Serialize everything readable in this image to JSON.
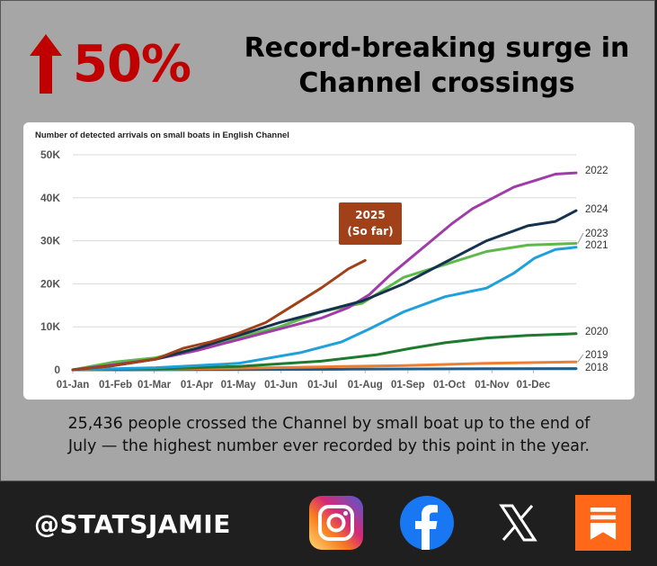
{
  "headline": {
    "percent": "50%",
    "title_line1": "Record-breaking surge in",
    "title_line2": "Channel crossings"
  },
  "colors": {
    "background": "#a6a6a6",
    "accent_red": "#c00000",
    "footer": "#1f1f1f",
    "annotation_box": "#a0411a"
  },
  "chart_data": {
    "type": "line",
    "title": "Number of detected arrivals on small boats in English Channel",
    "xlabel": "",
    "ylabel": "",
    "x_ticks": [
      "01-Jan",
      "01-Feb",
      "01-Mar",
      "01-Apr",
      "01-May",
      "01-Jun",
      "01-Jul",
      "01-Aug",
      "01-Sep",
      "01-Oct",
      "01-Nov",
      "01-Dec"
    ],
    "x_tick_days": [
      0,
      31,
      59,
      90,
      120,
      151,
      181,
      212,
      243,
      273,
      304,
      334
    ],
    "xlim": [
      0,
      365
    ],
    "y_ticks": [
      "0",
      "10K",
      "20K",
      "30K",
      "40K",
      "50K"
    ],
    "y_tick_values": [
      0,
      10000,
      20000,
      30000,
      40000,
      50000
    ],
    "ylim": [
      0,
      50000
    ],
    "grid": true,
    "annotation": {
      "line1": "2025",
      "line2": "(So far)"
    },
    "series": [
      {
        "name": "2018",
        "color": "#1f5c8a",
        "x": [
          0,
          100,
          200,
          300,
          365
        ],
        "y": [
          0,
          50,
          150,
          250,
          300
        ]
      },
      {
        "name": "2019",
        "color": "#ed7d31",
        "x": [
          0,
          60,
          120,
          180,
          240,
          300,
          365
        ],
        "y": [
          0,
          150,
          350,
          700,
          1000,
          1500,
          1850
        ]
      },
      {
        "name": "2020",
        "color": "#1e7a2e",
        "x": [
          0,
          60,
          120,
          180,
          220,
          245,
          270,
          300,
          330,
          365
        ],
        "y": [
          0,
          200,
          800,
          2000,
          3500,
          5000,
          6300,
          7400,
          8000,
          8400
        ]
      },
      {
        "name": "2021",
        "color": "#1fa0db",
        "x": [
          0,
          60,
          120,
          165,
          195,
          215,
          240,
          270,
          300,
          320,
          335,
          350,
          365
        ],
        "y": [
          0,
          500,
          1500,
          4000,
          6500,
          9500,
          13500,
          17000,
          19000,
          22500,
          26000,
          28000,
          28500
        ]
      },
      {
        "name": "2022",
        "color": "#a03ca8",
        "x": [
          0,
          30,
          60,
          90,
          120,
          150,
          180,
          200,
          215,
          230,
          245,
          260,
          275,
          290,
          305,
          320,
          335,
          350,
          365
        ],
        "y": [
          0,
          1200,
          2500,
          4500,
          7000,
          9500,
          12000,
          14500,
          17500,
          22000,
          26000,
          30000,
          34000,
          37500,
          40000,
          42500,
          44000,
          45500,
          45800
        ]
      },
      {
        "name": "2023",
        "color": "#5fb84a",
        "x": [
          0,
          30,
          60,
          90,
          120,
          150,
          180,
          210,
          240,
          270,
          300,
          330,
          365
        ],
        "y": [
          0,
          1800,
          2800,
          5000,
          7500,
          10000,
          13500,
          15500,
          21500,
          24500,
          27500,
          29000,
          29400
        ]
      },
      {
        "name": "2024",
        "color": "#14324f",
        "x": [
          0,
          30,
          60,
          90,
          120,
          150,
          180,
          210,
          240,
          270,
          300,
          330,
          350,
          365
        ],
        "y": [
          0,
          1000,
          2500,
          5000,
          8000,
          11000,
          13500,
          16000,
          20000,
          25000,
          30000,
          33500,
          34500,
          37000
        ]
      },
      {
        "name": "2025",
        "color": "#a0411a",
        "x": [
          0,
          30,
          60,
          80,
          100,
          120,
          140,
          160,
          180,
          200,
          212
        ],
        "y": [
          0,
          1000,
          2500,
          5000,
          6500,
          8500,
          11000,
          15000,
          19000,
          23500,
          25436
        ]
      }
    ]
  },
  "caption": {
    "line1": "25,436 people crossed the Channel by small boat up to the end of",
    "line2": "July — the highest number ever recorded by this point in the year."
  },
  "footer": {
    "handle": "@STATSJAMIE",
    "icons": [
      "instagram-icon",
      "facebook-icon",
      "x-icon",
      "substack-icon"
    ]
  }
}
